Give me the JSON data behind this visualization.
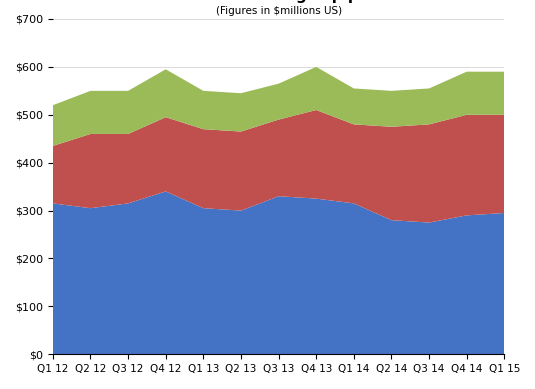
{
  "categories": [
    "Q1 12",
    "Q2 12",
    "Q3 12",
    "Q4 12",
    "Q1 13",
    "Q2 13",
    "Q3 13",
    "Q4 13",
    "Q1 14",
    "Q2 14",
    "Q3 14",
    "Q4 14",
    "Q1 15"
  ],
  "flagship": [
    315,
    305,
    315,
    340,
    305,
    300,
    330,
    325,
    315,
    280,
    275,
    290,
    295
  ],
  "suites": [
    120,
    155,
    145,
    155,
    165,
    165,
    160,
    185,
    165,
    195,
    205,
    210,
    205
  ],
  "new_adj": [
    85,
    90,
    90,
    100,
    80,
    80,
    75,
    90,
    75,
    75,
    75,
    90,
    90
  ],
  "subtitle": "(Figures in $millions US)",
  "color_flagship": "#4472C4",
  "color_suites": "#C0504D",
  "color_new": "#9BBB59",
  "ylim_max": 700,
  "ytick_step": 100,
  "background_color": "#FFFFFF",
  "plot_bg": "#FFFFFF"
}
